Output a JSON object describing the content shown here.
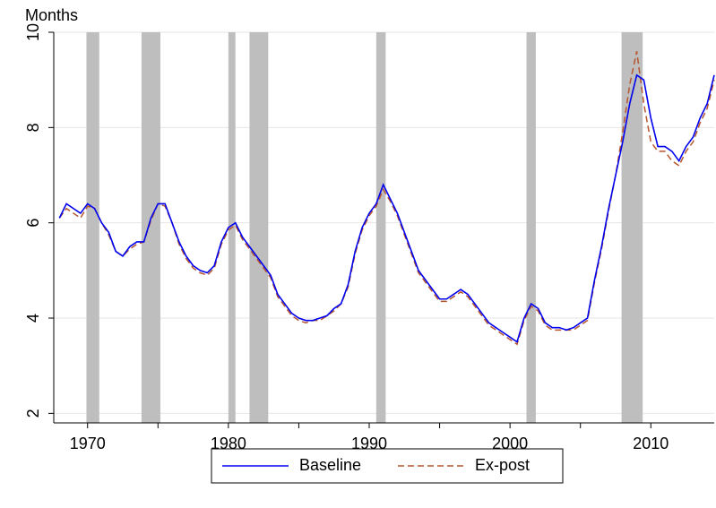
{
  "chart_data": {
    "type": "line",
    "ylabel": "Months",
    "x": [
      1968,
      1968.5,
      1969,
      1969.5,
      1970,
      1970.5,
      1971,
      1971.5,
      1972,
      1972.5,
      1973,
      1973.5,
      1974,
      1974.5,
      1975,
      1975.5,
      1976,
      1976.5,
      1977,
      1977.5,
      1978,
      1978.5,
      1979,
      1979.5,
      1980,
      1980.5,
      1981,
      1981.5,
      1982,
      1982.5,
      1983,
      1983.5,
      1984,
      1984.5,
      1985,
      1985.5,
      1986,
      1986.5,
      1987,
      1987.5,
      1988,
      1988.5,
      1989,
      1989.5,
      1990,
      1990.5,
      1991,
      1991.5,
      1992,
      1992.5,
      1993,
      1993.5,
      1994,
      1994.5,
      1995,
      1995.5,
      1996,
      1996.5,
      1997,
      1997.5,
      1998,
      1998.5,
      1999,
      1999.5,
      2000,
      2000.5,
      2001,
      2001.5,
      2002,
      2002.5,
      2003,
      2003.5,
      2004,
      2004.5,
      2005,
      2005.5,
      2006,
      2006.5,
      2007,
      2007.5,
      2008,
      2008.5,
      2009,
      2009.5,
      2010,
      2010.5,
      2011,
      2011.5,
      2012,
      2012.5,
      2013,
      2013.5,
      2014,
      2014.5
    ],
    "series": [
      {
        "name": "Baseline",
        "color": "#0000ee",
        "dash": false,
        "values": [
          6.1,
          6.4,
          6.3,
          6.2,
          6.4,
          6.3,
          6.0,
          5.8,
          5.4,
          5.3,
          5.5,
          5.6,
          5.6,
          6.1,
          6.4,
          6.4,
          6.0,
          5.6,
          5.3,
          5.1,
          5.0,
          4.95,
          5.1,
          5.6,
          5.9,
          6.0,
          5.7,
          5.5,
          5.3,
          5.1,
          4.9,
          4.5,
          4.3,
          4.1,
          4.0,
          3.95,
          3.95,
          4.0,
          4.05,
          4.2,
          4.3,
          4.7,
          5.4,
          5.9,
          6.2,
          6.4,
          6.8,
          6.5,
          6.2,
          5.8,
          5.4,
          5.0,
          4.8,
          4.6,
          4.4,
          4.4,
          4.5,
          4.6,
          4.5,
          4.3,
          4.1,
          3.9,
          3.8,
          3.7,
          3.6,
          3.5,
          4.0,
          4.3,
          4.2,
          3.9,
          3.8,
          3.8,
          3.75,
          3.8,
          3.9,
          4.0,
          4.8,
          5.5,
          6.3,
          7.0,
          7.7,
          8.5,
          9.1,
          9.0,
          8.2,
          7.6,
          7.6,
          7.5,
          7.3,
          7.6,
          7.8,
          8.2,
          8.5,
          9.1
        ]
      },
      {
        "name": "Ex-post",
        "color": "#b5562f",
        "dash": true,
        "values": [
          6.1,
          6.3,
          6.2,
          6.1,
          6.35,
          6.3,
          6.0,
          5.75,
          5.4,
          5.3,
          5.45,
          5.55,
          5.6,
          6.05,
          6.4,
          6.35,
          6.0,
          5.55,
          5.25,
          5.05,
          4.95,
          4.9,
          5.05,
          5.55,
          5.85,
          5.95,
          5.65,
          5.45,
          5.25,
          5.05,
          4.85,
          4.45,
          4.25,
          4.05,
          3.95,
          3.9,
          3.95,
          3.95,
          4.05,
          4.15,
          4.3,
          4.65,
          5.35,
          5.85,
          6.15,
          6.35,
          6.7,
          6.45,
          6.15,
          5.75,
          5.35,
          4.95,
          4.75,
          4.55,
          4.35,
          4.35,
          4.45,
          4.55,
          4.45,
          4.25,
          4.05,
          3.85,
          3.75,
          3.65,
          3.55,
          3.45,
          3.95,
          4.25,
          4.15,
          3.85,
          3.75,
          3.75,
          3.75,
          3.75,
          3.85,
          3.95,
          4.75,
          5.45,
          6.25,
          7.0,
          7.9,
          8.9,
          9.6,
          8.5,
          7.7,
          7.5,
          7.5,
          7.3,
          7.2,
          7.5,
          7.7,
          8.1,
          8.4,
          9.0
        ]
      }
    ],
    "recessions": [
      [
        1969.92,
        1970.83
      ],
      [
        1973.83,
        1975.17
      ],
      [
        1980.0,
        1980.5
      ],
      [
        1981.5,
        1982.83
      ],
      [
        1990.5,
        1991.17
      ],
      [
        2001.17,
        2001.83
      ],
      [
        2007.92,
        2009.42
      ]
    ],
    "xlim": [
      1967.6,
      2014.5
    ],
    "xticks": [
      1970,
      1980,
      1990,
      2000,
      2010
    ],
    "xminorticks": [
      1975,
      1985,
      1995,
      2005
    ],
    "ylim": [
      1.8,
      10
    ],
    "yticks": [
      2,
      4,
      6,
      8,
      10
    ],
    "grid": true
  }
}
